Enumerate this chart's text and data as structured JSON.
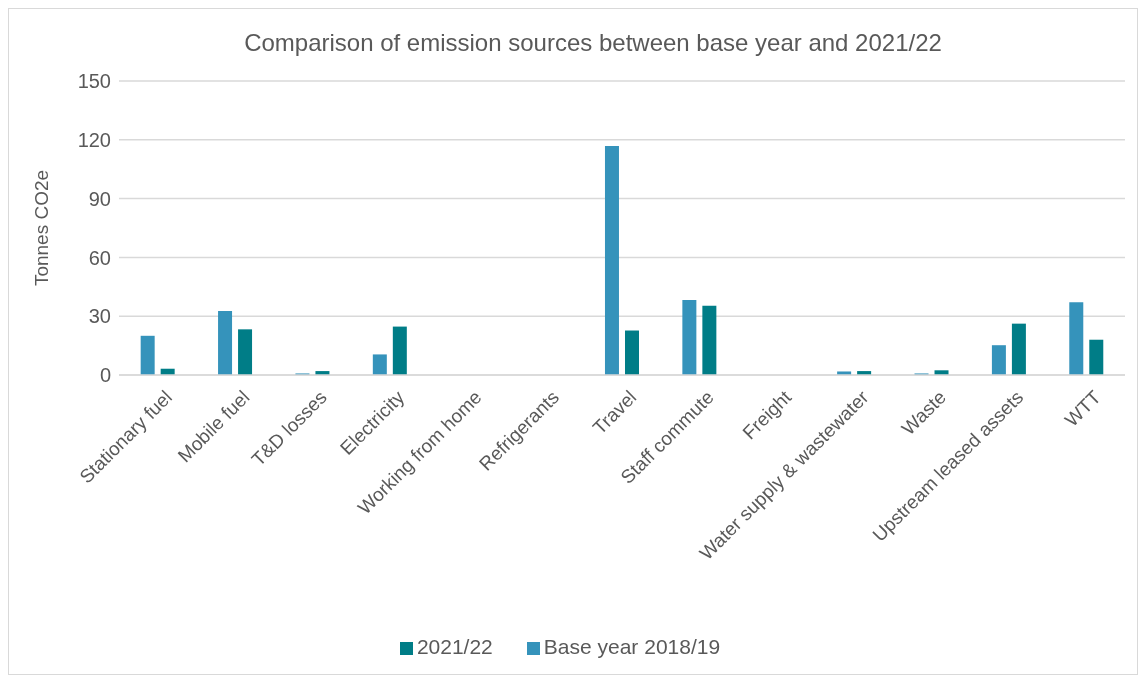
{
  "chart_data": {
    "type": "bar",
    "title": "Comparison of emission sources between base year and 2021/22",
    "ylabel": "Tonnes CO2e",
    "categories": [
      "Stationary fuel",
      "Mobile fuel",
      "T&D losses",
      "Electricity",
      "Working from home",
      "Refrigerants",
      "Travel",
      "Staff commute",
      "Freight",
      "Water supply & wastewater",
      "Waste",
      "Upstream leased assets",
      "WTT"
    ],
    "series": [
      {
        "name": "Base year 2018/19",
        "color": "#3593bb",
        "values": [
          20,
          32.7,
          0.8,
          10.5,
          0,
          0,
          116.8,
          38.3,
          0,
          1.8,
          0.8,
          15.2,
          37.1
        ]
      },
      {
        "name": "2021/22",
        "color": "#007d87",
        "values": [
          3.2,
          23.3,
          2,
          24.7,
          0,
          0,
          22.7,
          35.3,
          0,
          2,
          2.4,
          26.2,
          18
        ]
      }
    ],
    "ylim": [
      0,
      150
    ],
    "yticks": [
      0,
      30,
      60,
      90,
      120,
      150
    ],
    "grid": "y",
    "legend": "bottom"
  }
}
